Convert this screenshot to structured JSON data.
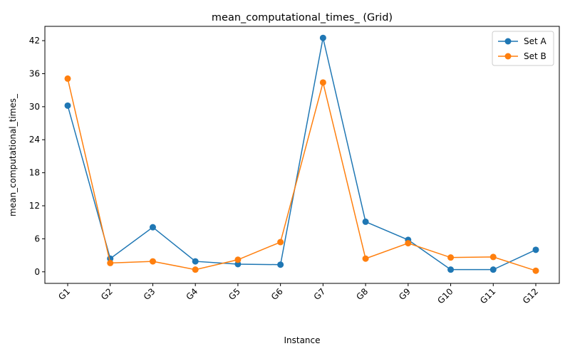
{
  "chart_data": {
    "type": "line",
    "title": "mean_computational_times_  (Grid)",
    "xlabel": "Instance",
    "ylabel": "mean_computational_times_",
    "categories": [
      "G1",
      "G2",
      "G3",
      "G4",
      "G5",
      "G6",
      "G7",
      "G8",
      "G9",
      "G10",
      "G11",
      "G12"
    ],
    "series": [
      {
        "name": "Set A",
        "color": "#1f77b4",
        "values": [
          30.2,
          2.4,
          8.1,
          1.9,
          1.4,
          1.3,
          42.5,
          9.1,
          5.8,
          0.4,
          0.4,
          4.0
        ]
      },
      {
        "name": "Set B",
        "color": "#ff7f0e",
        "values": [
          35.1,
          1.6,
          1.9,
          0.4,
          2.2,
          5.4,
          34.4,
          2.4,
          5.2,
          2.6,
          2.7,
          0.2
        ]
      }
    ],
    "yticks": [
      0,
      6,
      12,
      18,
      24,
      30,
      36,
      42
    ],
    "ylim": [
      -2.1,
      44.6
    ],
    "grid": false,
    "legend_position": "top-right"
  }
}
